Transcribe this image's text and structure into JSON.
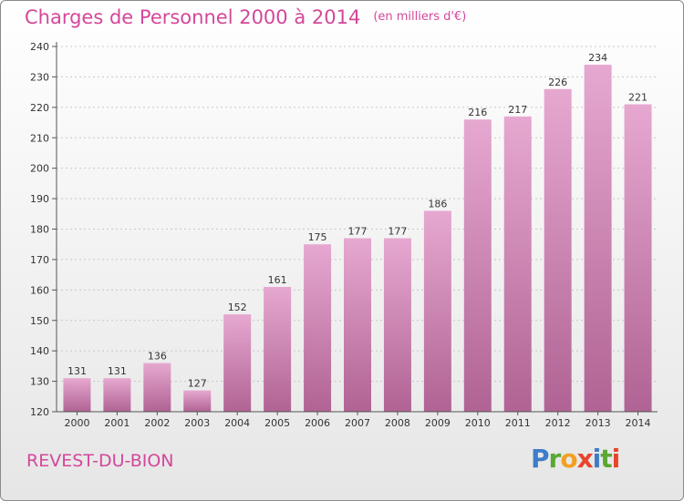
{
  "header": {
    "title": "Charges de Personnel 2000 à 2014",
    "subtitle": "(en milliers d'€)"
  },
  "footer": {
    "commune": "REVEST-DU-BION",
    "logo_letters": [
      "P",
      "r",
      "o",
      "x",
      "i",
      "t",
      "i"
    ]
  },
  "colors": {
    "title": "#d4479a",
    "bar_top": "#e6a8d0",
    "bar_bottom": "#b06394",
    "logo": [
      "#3d7cc9",
      "#5aa832",
      "#f2a024",
      "#e8452c",
      "#3d7cc9",
      "#5aa832",
      "#e8452c"
    ]
  },
  "chart_data": {
    "type": "bar",
    "categories": [
      "2000",
      "2001",
      "2002",
      "2003",
      "2004",
      "2005",
      "2006",
      "2007",
      "2008",
      "2009",
      "2010",
      "2011",
      "2012",
      "2013",
      "2014"
    ],
    "values": [
      131,
      131,
      136,
      127,
      152,
      161,
      175,
      177,
      177,
      186,
      216,
      217,
      226,
      234,
      221
    ],
    "ylim": [
      120,
      240
    ],
    "yticks": [
      120,
      130,
      140,
      150,
      160,
      170,
      180,
      190,
      200,
      210,
      220,
      230,
      240
    ],
    "grid": true,
    "legend": "none"
  }
}
